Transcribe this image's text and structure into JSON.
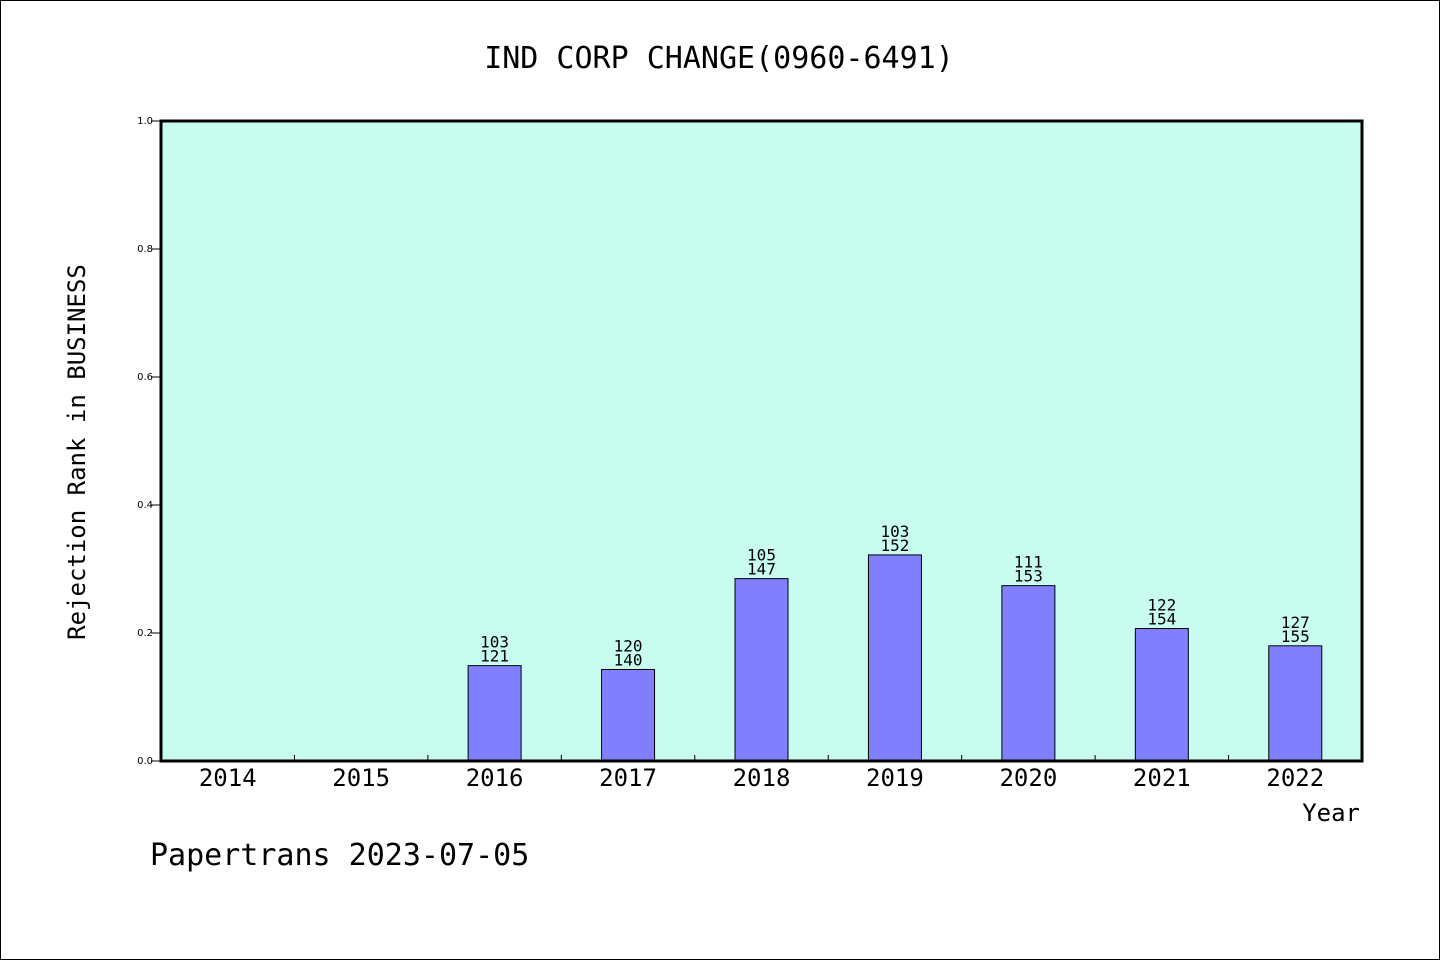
{
  "chart_data": {
    "type": "bar",
    "title": "IND CORP CHANGE(0960-6491)",
    "xlabel": "Year",
    "ylabel": "Rejection Rank in BUSINESS",
    "ylim": [
      0,
      1.0
    ],
    "yticks": [
      "0.0",
      "0.2",
      "0.4",
      "0.6",
      "0.8",
      "1.0"
    ],
    "categories": [
      "2014",
      "2015",
      "2016",
      "2017",
      "2018",
      "2019",
      "2020",
      "2021",
      "2022"
    ],
    "values": [
      null,
      null,
      0.149,
      0.143,
      0.285,
      0.322,
      0.274,
      0.207,
      0.18
    ],
    "label_top": [
      "",
      "",
      "103",
      "120",
      "105",
      "103",
      "111",
      "122",
      "127"
    ],
    "label_bottom": [
      "",
      "",
      "121",
      "140",
      "147",
      "152",
      "153",
      "154",
      "155"
    ],
    "grid": false,
    "colors": {
      "plot_background": "#c8fcee",
      "bar_fill": "#8080ff",
      "bar_stroke": "#000000"
    }
  },
  "footer": "Papertrans 2023-07-05"
}
